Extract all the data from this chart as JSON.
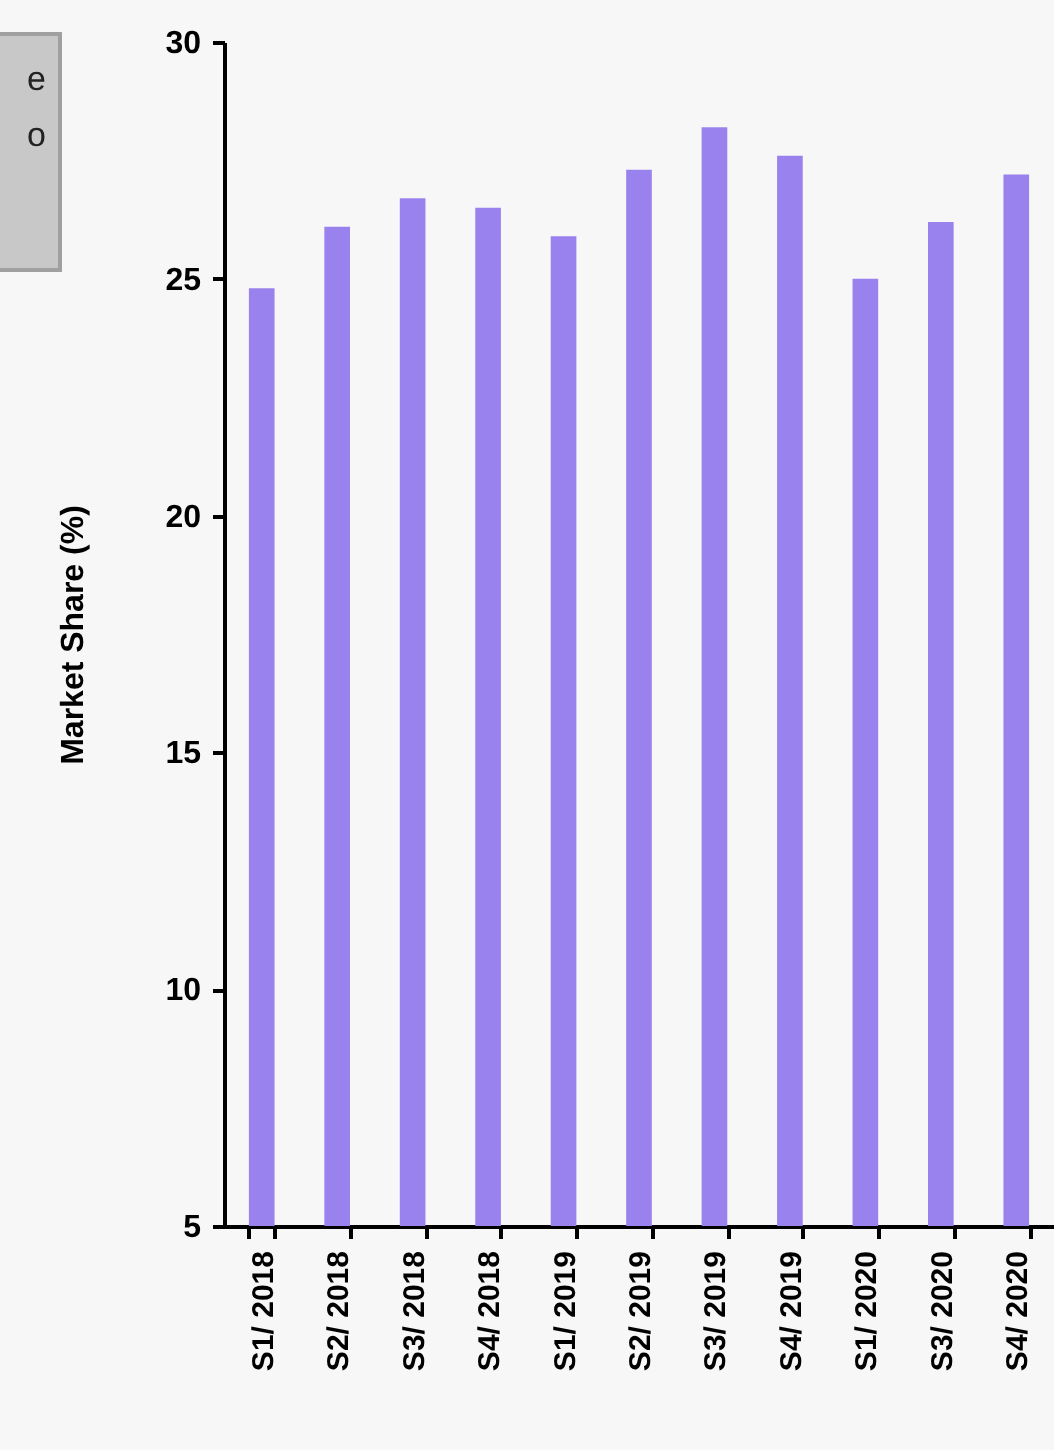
{
  "chart_data": {
    "type": "bar",
    "ylabel": "Market Share (%)",
    "categories": [
      "S1/ 2018",
      "S2/ 2018",
      "S3/ 2018",
      "S4/ 2018",
      "S1/ 2019",
      "S2/ 2019",
      "S3/ 2019",
      "S4/ 2019",
      "S1/ 2020",
      "S3/ 2020",
      "S4/ 2020"
    ],
    "series": [
      {
        "color": "#9a82ee",
        "values": [
          24.8,
          26.1,
          26.7,
          26.5,
          25.9,
          27.3,
          28.2,
          27.6,
          25.0,
          26.2,
          27.2
        ]
      }
    ],
    "ylim": [
      5,
      30
    ],
    "yticks": [
      5,
      10,
      15,
      20,
      25,
      30
    ],
    "grid": false,
    "legend": false,
    "annotations": [
      "e",
      "o"
    ]
  }
}
